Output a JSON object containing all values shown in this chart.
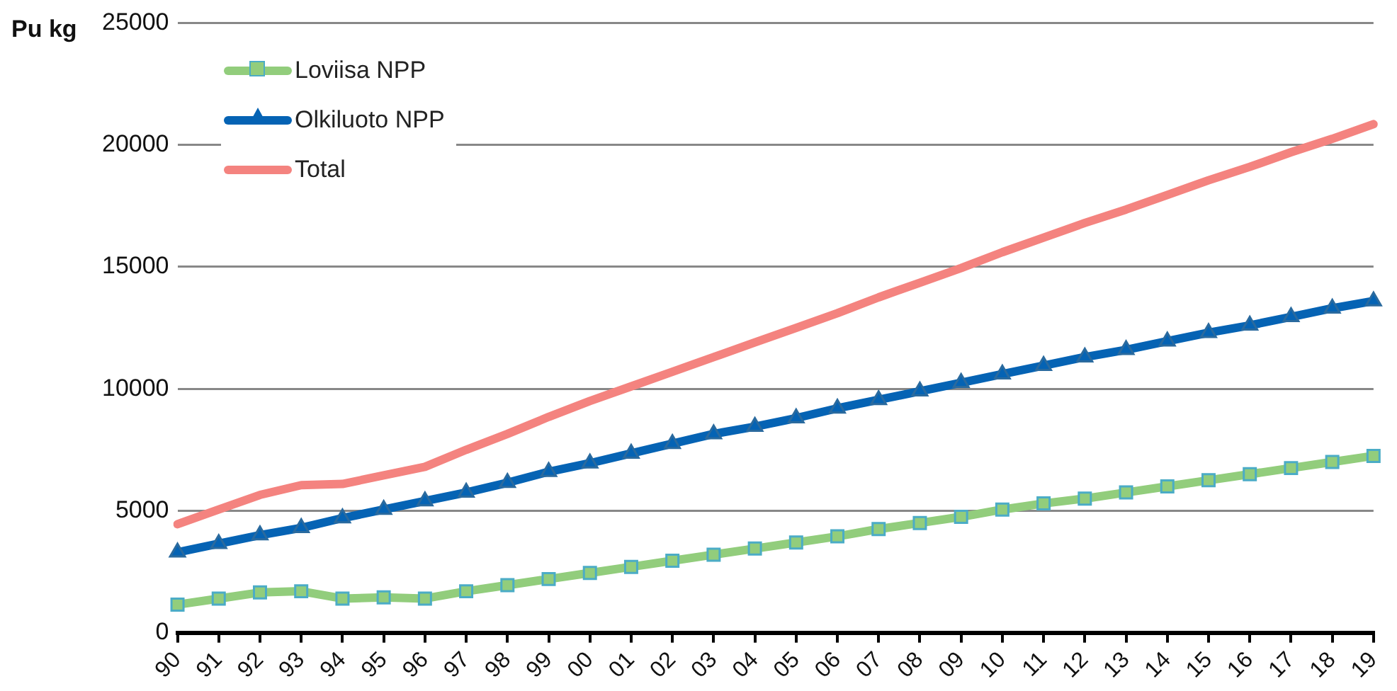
{
  "chart_data": {
    "type": "line",
    "ylabel": "Pu kg",
    "categories": [
      "90",
      "91",
      "92",
      "93",
      "94",
      "95",
      "96",
      "97",
      "98",
      "99",
      "00",
      "01",
      "02",
      "03",
      "04",
      "05",
      "06",
      "07",
      "08",
      "09",
      "10",
      "11",
      "12",
      "13",
      "14",
      "15",
      "16",
      "17",
      "18",
      "19"
    ],
    "series": [
      {
        "name": "Loviisa NPP",
        "color": "#92cd7c",
        "marker": "square",
        "values": [
          1150,
          1400,
          1650,
          1700,
          1400,
          1450,
          1400,
          1700,
          1950,
          2200,
          2450,
          2700,
          2950,
          3200,
          3450,
          3700,
          3950,
          4250,
          4500,
          4750,
          5050,
          5300,
          5500,
          5750,
          6000,
          6250,
          6500,
          6750,
          7000,
          7250
        ]
      },
      {
        "name": "Olkiluoto NPP",
        "color": "#0563b4",
        "marker": "triangle",
        "values": [
          3300,
          3650,
          4000,
          4300,
          4700,
          5050,
          5400,
          5750,
          6150,
          6600,
          6950,
          7350,
          7750,
          8150,
          8450,
          8800,
          9200,
          9550,
          9900,
          10250,
          10600,
          10950,
          11300,
          11600,
          11950,
          12300,
          12600,
          12950,
          13300,
          13600
        ]
      },
      {
        "name": "Total",
        "color": "#f4837f",
        "marker": "none",
        "values": [
          4450,
          5050,
          5650,
          6050,
          6100,
          6450,
          6800,
          7500,
          8150,
          8850,
          9500,
          10100,
          10700,
          11300,
          11900,
          12500,
          13100,
          13750,
          14350,
          14950,
          15600,
          16200,
          16800,
          17350,
          17950,
          18550,
          19100,
          19700,
          20250,
          20850
        ]
      }
    ],
    "ylim": [
      0,
      25000
    ],
    "yticks": [
      0,
      5000,
      10000,
      15000,
      20000,
      25000
    ],
    "grid": "y",
    "legend": "top left"
  }
}
